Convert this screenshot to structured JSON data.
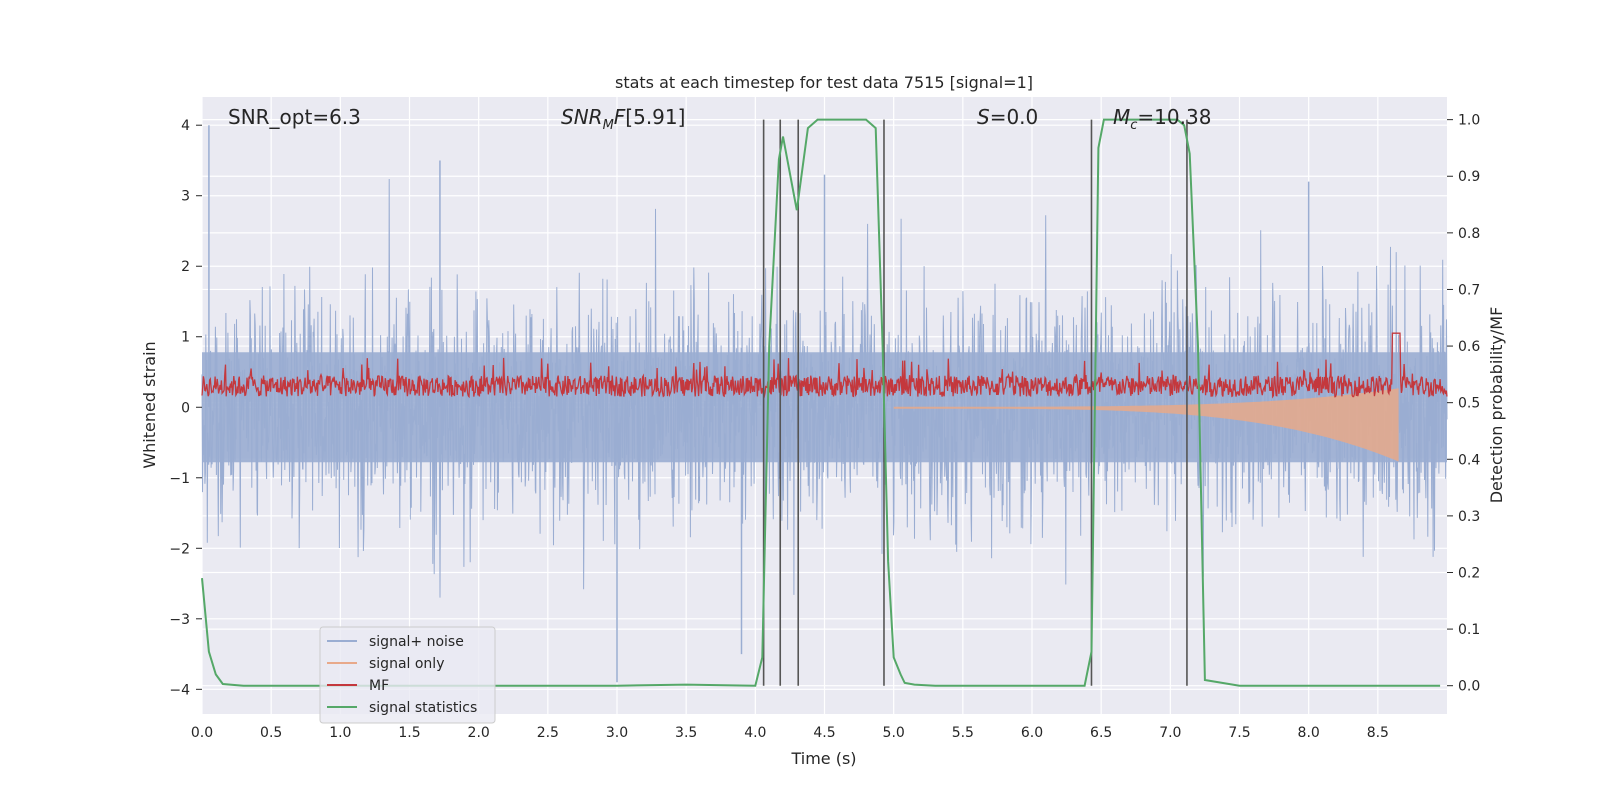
{
  "chart_data": {
    "type": "line",
    "title": "stats at each timestep for test data 7515 [signal=1]",
    "xlabel": "Time (s)",
    "ylabel": "Whitened strain",
    "ylabel_right": "Detection probability/MF",
    "xlim": [
      0,
      9.0
    ],
    "ylim": [
      -4.35,
      4.4
    ],
    "ylim_right": [
      -0.05,
      1.04
    ],
    "xticks": [
      0.0,
      0.5,
      1.0,
      1.5,
      2.0,
      2.5,
      3.0,
      3.5,
      4.0,
      4.5,
      5.0,
      5.5,
      6.0,
      6.5,
      7.0,
      7.5,
      8.0,
      8.5
    ],
    "xtick_labels": [
      "0.0",
      "0.5",
      "1.0",
      "1.5",
      "2.0",
      "2.5",
      "3.0",
      "3.5",
      "4.0",
      "4.5",
      "5.0",
      "5.5",
      "6.0",
      "6.5",
      "7.0",
      "7.5",
      "8.0",
      "8.5"
    ],
    "yticks": [
      -4,
      -3,
      -2,
      -1,
      0,
      1,
      2,
      3,
      4
    ],
    "ytick_labels": [
      "−4",
      "−3",
      "−2",
      "−1",
      "0",
      "1",
      "2",
      "3",
      "4"
    ],
    "yticks_right": [
      0.0,
      0.1,
      0.2,
      0.3,
      0.4,
      0.5,
      0.6,
      0.7,
      0.8,
      0.9,
      1.0
    ],
    "ytick_labels_right": [
      "0.0",
      "0.1",
      "0.2",
      "0.3",
      "0.4",
      "0.5",
      "0.6",
      "0.7",
      "0.8",
      "0.9",
      "1.0"
    ],
    "annotations": {
      "snr_opt": "SNR_opt=6.3",
      "snr_mf": "[5.91]",
      "s": "=0.0",
      "mc": "=10.38"
    },
    "noise": {
      "amplitude_std": 0.8,
      "outliers": [
        [
          0.05,
          4.0
        ],
        [
          1.72,
          3.5
        ],
        [
          3.0,
          -3.9
        ],
        [
          4.5,
          3.3
        ],
        [
          8.0,
          3.2
        ],
        [
          3.9,
          -3.5
        ]
      ]
    },
    "signal_only": {
      "start": 5.0,
      "end": 8.65,
      "peak_amplitude": 0.75
    },
    "mf": {
      "baseline": 0.3,
      "spread": 0.15,
      "peak": [
        8.63,
        1.05
      ]
    },
    "signal_statistics": {
      "x": [
        0.0,
        0.05,
        0.1,
        0.15,
        0.3,
        0.5,
        1.0,
        2.0,
        3.0,
        3.5,
        4.0,
        4.05,
        4.1,
        4.17,
        4.2,
        4.3,
        4.38,
        4.45,
        4.55,
        4.8,
        4.87,
        4.92,
        4.96,
        5.0,
        5.05,
        5.08,
        5.15,
        5.3,
        5.5,
        6.0,
        6.38,
        6.43,
        6.48,
        6.52,
        6.7,
        7.05,
        7.1,
        7.14,
        7.2,
        7.25,
        7.5,
        8.0,
        8.95
      ],
      "y": [
        0.19,
        0.06,
        0.02,
        0.003,
        0.0,
        0.0,
        0.0,
        0.0,
        0.0,
        0.002,
        0.0,
        0.05,
        0.6,
        0.93,
        0.97,
        0.84,
        0.985,
        1.0,
        1.0,
        1.0,
        0.985,
        0.6,
        0.22,
        0.05,
        0.02,
        0.005,
        0.002,
        0.0,
        0.0,
        0.0,
        0.0,
        0.06,
        0.95,
        1.0,
        1.0,
        1.0,
        0.99,
        0.94,
        0.6,
        0.01,
        0.0,
        0.0,
        0.0
      ]
    },
    "vlines": [
      4.06,
      4.18,
      4.31,
      4.93,
      6.43,
      7.12
    ],
    "legend": {
      "placement": "lower-left",
      "entries": [
        {
          "label": "signal+ noise",
          "color": "#9aadd2"
        },
        {
          "label": "signal only",
          "color": "#e8a98a"
        },
        {
          "label": "MF",
          "color": "#c4383d"
        },
        {
          "label": "signal statistics",
          "color": "#55a868"
        }
      ]
    }
  }
}
